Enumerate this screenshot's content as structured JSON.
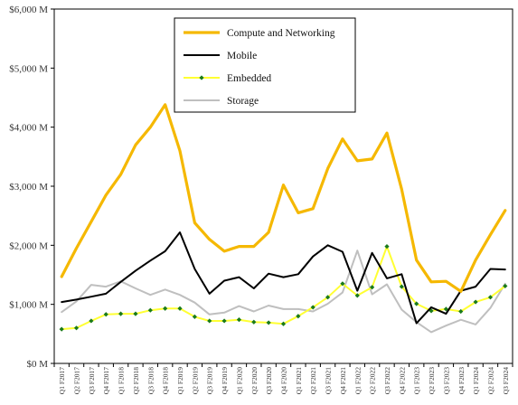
{
  "chart_data": {
    "type": "line",
    "title": "",
    "xlabel": "",
    "ylabel": "",
    "ylim": [
      0,
      6000
    ],
    "yticks": [
      {
        "value": 0,
        "label": "$0 M"
      },
      {
        "value": 1000,
        "label": "$1,000 M"
      },
      {
        "value": 2000,
        "label": "$2,000 M"
      },
      {
        "value": 3000,
        "label": "$3,000 M"
      },
      {
        "value": 4000,
        "label": "$4,000 M"
      },
      {
        "value": 5000,
        "label": "$5,000 M"
      },
      {
        "value": 6000,
        "label": "$6,000 M"
      }
    ],
    "grid": false,
    "legend_position": "top-center",
    "categories": [
      "Q1 F2017",
      "Q2 F2017",
      "Q3 F2017",
      "Q4 F2017",
      "Q1 F2018",
      "Q2 F2018",
      "Q3 F2018",
      "Q4 F2018",
      "Q1 F2019",
      "Q2 F2019",
      "Q3 F2019",
      "Q4 F2019",
      "Q1 F2020",
      "Q2 F2020",
      "Q3 F2020",
      "Q4 F2020",
      "Q1 F2021",
      "Q2 F2021",
      "Q3 F2021",
      "Q4 F2021",
      "Q1 F2022",
      "Q2 F2022",
      "Q3 F2022",
      "Q4 F2022",
      "Q1 F2023",
      "Q2 F2023",
      "Q3 F2023",
      "Q4 F2023",
      "Q1 F2024",
      "Q2 F2024",
      "Q3 F2024"
    ],
    "series": [
      {
        "name": "Compute and Networking",
        "color": "#F5B800",
        "marker": "none",
        "values": [
          1470,
          1950,
          2400,
          2850,
          3200,
          3700,
          4000,
          4380,
          3600,
          2380,
          2100,
          1900,
          1980,
          1980,
          2220,
          3020,
          2550,
          2620,
          3300,
          3800,
          3430,
          3460,
          3900,
          2950,
          1750,
          1380,
          1390,
          1220,
          1750,
          2180,
          2590
        ]
      },
      {
        "name": "Mobile",
        "color": "#000000",
        "marker": "none",
        "values": [
          1040,
          1080,
          1130,
          1180,
          1380,
          1570,
          1740,
          1900,
          2220,
          1600,
          1180,
          1400,
          1460,
          1270,
          1520,
          1460,
          1510,
          1810,
          2000,
          1890,
          1230,
          1870,
          1440,
          1510,
          680,
          950,
          840,
          1230,
          1300,
          1600,
          1590
        ]
      },
      {
        "name": "Embedded",
        "color": "#FFFF33",
        "marker": "diamond",
        "marker_color": "#1a7a1a",
        "values": [
          580,
          600,
          720,
          830,
          840,
          840,
          900,
          930,
          930,
          790,
          720,
          720,
          740,
          700,
          690,
          670,
          800,
          950,
          1120,
          1350,
          1150,
          1290,
          1980,
          1300,
          1010,
          890,
          920,
          880,
          1040,
          1120,
          1310
        ]
      },
      {
        "name": "Storage",
        "color": "#BFBFBF",
        "marker": "none",
        "values": [
          870,
          1050,
          1330,
          1300,
          1390,
          1270,
          1160,
          1250,
          1160,
          1030,
          830,
          860,
          970,
          880,
          980,
          920,
          920,
          880,
          1010,
          1200,
          1910,
          1170,
          1340,
          910,
          700,
          530,
          640,
          740,
          660,
          940,
          1350
        ]
      }
    ]
  }
}
